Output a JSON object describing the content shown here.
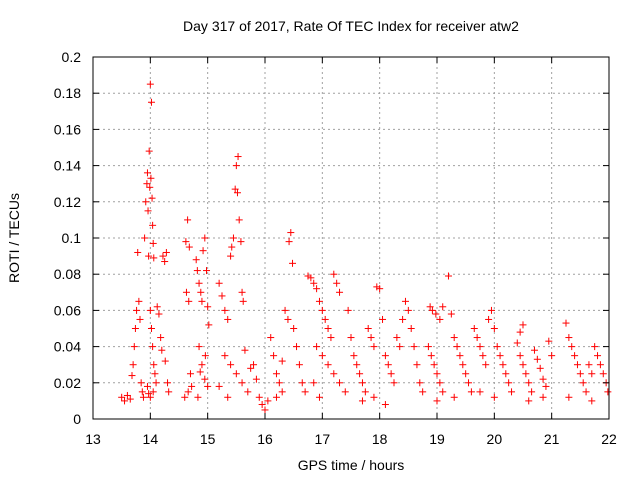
{
  "chart_data": {
    "type": "scatter",
    "title": "Day 317 of 2017, Rate Of TEC Index for receiver atw2",
    "xlabel": "GPS time / hours",
    "ylabel": "ROTI / TECUs",
    "xlim": [
      13,
      22
    ],
    "ylim": [
      0,
      0.2
    ],
    "xticks": [
      "13",
      "14",
      "15",
      "16",
      "17",
      "18",
      "19",
      "20",
      "21",
      "22"
    ],
    "yticks": [
      "0",
      "0.02",
      "0.04",
      "0.06",
      "0.08",
      "0.1",
      "0.12",
      "0.14",
      "0.16",
      "0.18",
      "0.2"
    ],
    "grid": true,
    "marker": "plus",
    "marker_color": "#ff0000",
    "points": [
      [
        13.5,
        0.012
      ],
      [
        13.55,
        0.01
      ],
      [
        13.6,
        0.013
      ],
      [
        13.65,
        0.011
      ],
      [
        13.68,
        0.024
      ],
      [
        13.7,
        0.03
      ],
      [
        13.72,
        0.04
      ],
      [
        13.74,
        0.05
      ],
      [
        13.76,
        0.06
      ],
      [
        13.78,
        0.092
      ],
      [
        13.8,
        0.065
      ],
      [
        13.82,
        0.055
      ],
      [
        13.84,
        0.02
      ],
      [
        13.86,
        0.015
      ],
      [
        13.88,
        0.012
      ],
      [
        13.9,
        0.1
      ],
      [
        13.92,
        0.12
      ],
      [
        13.94,
        0.13
      ],
      [
        13.95,
        0.136
      ],
      [
        13.96,
        0.115
      ],
      [
        13.97,
        0.09
      ],
      [
        13.98,
        0.148
      ],
      [
        13.99,
        0.128
      ],
      [
        14.0,
        0.185
      ],
      [
        14.02,
        0.175
      ],
      [
        14.01,
        0.133
      ],
      [
        14.03,
        0.122
      ],
      [
        14.04,
        0.107
      ],
      [
        14.05,
        0.097
      ],
      [
        14.06,
        0.089
      ],
      [
        14.0,
        0.06
      ],
      [
        14.02,
        0.05
      ],
      [
        14.04,
        0.04
      ],
      [
        14.06,
        0.03
      ],
      [
        14.08,
        0.025
      ],
      [
        14.1,
        0.02
      ],
      [
        13.95,
        0.018
      ],
      [
        13.97,
        0.014
      ],
      [
        14.0,
        0.012
      ],
      [
        14.05,
        0.015
      ],
      [
        14.12,
        0.062
      ],
      [
        14.15,
        0.058
      ],
      [
        14.18,
        0.045
      ],
      [
        14.2,
        0.038
      ],
      [
        14.22,
        0.09
      ],
      [
        14.25,
        0.087
      ],
      [
        14.28,
        0.092
      ],
      [
        14.3,
        0.02
      ],
      [
        14.32,
        0.015
      ],
      [
        14.26,
        0.032
      ],
      [
        14.62,
        0.098
      ],
      [
        14.65,
        0.11
      ],
      [
        14.68,
        0.095
      ],
      [
        14.63,
        0.07
      ],
      [
        14.67,
        0.065
      ],
      [
        14.7,
        0.025
      ],
      [
        14.72,
        0.018
      ],
      [
        14.66,
        0.015
      ],
      [
        14.6,
        0.012
      ],
      [
        14.8,
        0.088
      ],
      [
        14.82,
        0.082
      ],
      [
        14.85,
        0.075
      ],
      [
        14.88,
        0.07
      ],
      [
        14.9,
        0.065
      ],
      [
        14.92,
        0.093
      ],
      [
        14.95,
        0.1
      ],
      [
        14.98,
        0.082
      ],
      [
        15.0,
        0.062
      ],
      [
        15.02,
        0.052
      ],
      [
        14.85,
        0.04
      ],
      [
        14.9,
        0.03
      ],
      [
        14.95,
        0.022
      ],
      [
        15.0,
        0.018
      ],
      [
        14.83,
        0.012
      ],
      [
        14.96,
        0.035
      ],
      [
        14.87,
        0.026
      ],
      [
        15.2,
        0.075
      ],
      [
        15.25,
        0.068
      ],
      [
        15.3,
        0.06
      ],
      [
        15.35,
        0.055
      ],
      [
        15.4,
        0.09
      ],
      [
        15.42,
        0.095
      ],
      [
        15.45,
        0.1
      ],
      [
        15.48,
        0.127
      ],
      [
        15.5,
        0.14
      ],
      [
        15.52,
        0.125
      ],
      [
        15.55,
        0.11
      ],
      [
        15.58,
        0.098
      ],
      [
        15.6,
        0.07
      ],
      [
        15.62,
        0.065
      ],
      [
        15.53,
        0.145
      ],
      [
        15.3,
        0.035
      ],
      [
        15.4,
        0.03
      ],
      [
        15.5,
        0.025
      ],
      [
        15.6,
        0.02
      ],
      [
        15.7,
        0.015
      ],
      [
        15.2,
        0.018
      ],
      [
        15.35,
        0.012
      ],
      [
        15.65,
        0.038
      ],
      [
        15.75,
        0.028
      ],
      [
        15.85,
        0.022
      ],
      [
        15.9,
        0.012
      ],
      [
        15.95,
        0.008
      ],
      [
        16.0,
        0.005
      ],
      [
        16.05,
        0.01
      ],
      [
        15.8,
        0.03
      ],
      [
        16.1,
        0.045
      ],
      [
        16.15,
        0.035
      ],
      [
        16.2,
        0.025
      ],
      [
        16.25,
        0.02
      ],
      [
        16.3,
        0.015
      ],
      [
        16.35,
        0.06
      ],
      [
        16.4,
        0.055
      ],
      [
        16.42,
        0.098
      ],
      [
        16.45,
        0.103
      ],
      [
        16.48,
        0.086
      ],
      [
        16.5,
        0.05
      ],
      [
        16.55,
        0.04
      ],
      [
        16.6,
        0.03
      ],
      [
        16.65,
        0.02
      ],
      [
        16.7,
        0.015
      ],
      [
        16.3,
        0.032
      ],
      [
        16.2,
        0.012
      ],
      [
        16.75,
        0.079
      ],
      [
        16.8,
        0.078
      ],
      [
        16.85,
        0.075
      ],
      [
        16.9,
        0.072
      ],
      [
        16.95,
        0.065
      ],
      [
        17.0,
        0.06
      ],
      [
        17.05,
        0.055
      ],
      [
        17.1,
        0.05
      ],
      [
        17.15,
        0.045
      ],
      [
        17.2,
        0.08
      ],
      [
        17.25,
        0.075
      ],
      [
        17.3,
        0.07
      ],
      [
        16.9,
        0.04
      ],
      [
        17.0,
        0.035
      ],
      [
        17.1,
        0.03
      ],
      [
        17.2,
        0.025
      ],
      [
        17.3,
        0.02
      ],
      [
        17.4,
        0.015
      ],
      [
        16.85,
        0.02
      ],
      [
        16.95,
        0.012
      ],
      [
        17.45,
        0.06
      ],
      [
        17.5,
        0.045
      ],
      [
        17.55,
        0.035
      ],
      [
        17.6,
        0.03
      ],
      [
        17.65,
        0.025
      ],
      [
        17.7,
        0.02
      ],
      [
        17.75,
        0.015
      ],
      [
        17.8,
        0.05
      ],
      [
        17.85,
        0.045
      ],
      [
        17.9,
        0.04
      ],
      [
        17.95,
        0.073
      ],
      [
        18.0,
        0.072
      ],
      [
        18.05,
        0.055
      ],
      [
        18.1,
        0.035
      ],
      [
        18.15,
        0.03
      ],
      [
        18.2,
        0.025
      ],
      [
        18.25,
        0.02
      ],
      [
        18.3,
        0.045
      ],
      [
        18.35,
        0.04
      ],
      [
        18.4,
        0.055
      ],
      [
        18.45,
        0.065
      ],
      [
        18.5,
        0.06
      ],
      [
        18.55,
        0.05
      ],
      [
        18.6,
        0.04
      ],
      [
        18.65,
        0.03
      ],
      [
        18.7,
        0.02
      ],
      [
        18.75,
        0.015
      ],
      [
        17.7,
        0.01
      ],
      [
        17.9,
        0.012
      ],
      [
        18.1,
        0.008
      ],
      [
        18.85,
        0.04
      ],
      [
        18.9,
        0.035
      ],
      [
        18.95,
        0.03
      ],
      [
        19.0,
        0.025
      ],
      [
        19.05,
        0.02
      ],
      [
        19.1,
        0.015
      ],
      [
        18.88,
        0.062
      ],
      [
        18.92,
        0.06
      ],
      [
        18.98,
        0.058
      ],
      [
        19.05,
        0.055
      ],
      [
        19.1,
        0.062
      ],
      [
        19.2,
        0.079
      ],
      [
        19.25,
        0.058
      ],
      [
        19.3,
        0.045
      ],
      [
        19.35,
        0.04
      ],
      [
        19.4,
        0.035
      ],
      [
        19.45,
        0.03
      ],
      [
        19.5,
        0.025
      ],
      [
        19.55,
        0.02
      ],
      [
        19.6,
        0.015
      ],
      [
        19.0,
        0.01
      ],
      [
        19.3,
        0.012
      ],
      [
        19.65,
        0.05
      ],
      [
        19.7,
        0.045
      ],
      [
        19.75,
        0.04
      ],
      [
        19.8,
        0.035
      ],
      [
        19.85,
        0.03
      ],
      [
        19.9,
        0.055
      ],
      [
        19.95,
        0.06
      ],
      [
        20.0,
        0.05
      ],
      [
        20.05,
        0.04
      ],
      [
        20.1,
        0.035
      ],
      [
        20.15,
        0.03
      ],
      [
        20.2,
        0.025
      ],
      [
        20.25,
        0.02
      ],
      [
        20.3,
        0.015
      ],
      [
        19.75,
        0.015
      ],
      [
        20.0,
        0.012
      ],
      [
        20.4,
        0.042
      ],
      [
        20.45,
        0.035
      ],
      [
        20.5,
        0.03
      ],
      [
        20.55,
        0.025
      ],
      [
        20.6,
        0.02
      ],
      [
        20.65,
        0.015
      ],
      [
        20.5,
        0.052
      ],
      [
        20.45,
        0.048
      ],
      [
        20.7,
        0.038
      ],
      [
        20.75,
        0.033
      ],
      [
        20.8,
        0.028
      ],
      [
        20.85,
        0.022
      ],
      [
        20.9,
        0.018
      ],
      [
        20.95,
        0.043
      ],
      [
        21.0,
        0.035
      ],
      [
        20.6,
        0.01
      ],
      [
        20.85,
        0.012
      ],
      [
        21.25,
        0.053
      ],
      [
        21.3,
        0.045
      ],
      [
        21.35,
        0.04
      ],
      [
        21.4,
        0.035
      ],
      [
        21.45,
        0.03
      ],
      [
        21.5,
        0.025
      ],
      [
        21.55,
        0.02
      ],
      [
        21.6,
        0.015
      ],
      [
        21.65,
        0.03
      ],
      [
        21.7,
        0.025
      ],
      [
        21.75,
        0.04
      ],
      [
        21.8,
        0.035
      ],
      [
        21.85,
        0.03
      ],
      [
        21.9,
        0.025
      ],
      [
        21.95,
        0.02
      ],
      [
        21.98,
        0.015
      ],
      [
        21.3,
        0.012
      ],
      [
        21.7,
        0.01
      ]
    ]
  }
}
